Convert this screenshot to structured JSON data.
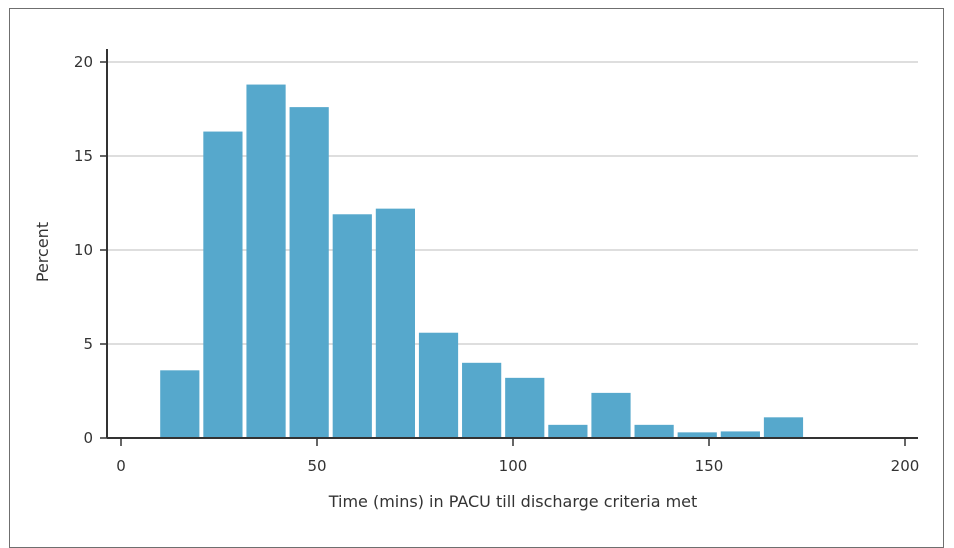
{
  "chart_data": {
    "type": "bar",
    "xlabel": "Time (mins) in PACU till discharge criteria met",
    "ylabel": "Percent",
    "xlim": [
      0,
      200
    ],
    "ylim": [
      0,
      20
    ],
    "x_ticks": [
      0,
      50,
      100,
      150,
      200
    ],
    "y_ticks": [
      0,
      5,
      10,
      15,
      20
    ],
    "grid": "horizontal",
    "bar_color": "#56a8cc",
    "bins": [
      {
        "start": 10,
        "end": 20,
        "value": 3.6
      },
      {
        "start": 21,
        "end": 31,
        "value": 16.3
      },
      {
        "start": 32,
        "end": 42,
        "value": 18.8
      },
      {
        "start": 43,
        "end": 53,
        "value": 17.6
      },
      {
        "start": 54,
        "end": 64,
        "value": 11.9
      },
      {
        "start": 65,
        "end": 75,
        "value": 12.2
      },
      {
        "start": 76,
        "end": 86,
        "value": 5.6
      },
      {
        "start": 87,
        "end": 97,
        "value": 4.0
      },
      {
        "start": 98,
        "end": 108,
        "value": 3.2
      },
      {
        "start": 109,
        "end": 119,
        "value": 0.7
      },
      {
        "start": 120,
        "end": 130,
        "value": 2.4
      },
      {
        "start": 131,
        "end": 141,
        "value": 0.7
      },
      {
        "start": 142,
        "end": 152,
        "value": 0.3
      },
      {
        "start": 153,
        "end": 163,
        "value": 0.35
      },
      {
        "start": 164,
        "end": 174,
        "value": 1.1
      }
    ]
  }
}
